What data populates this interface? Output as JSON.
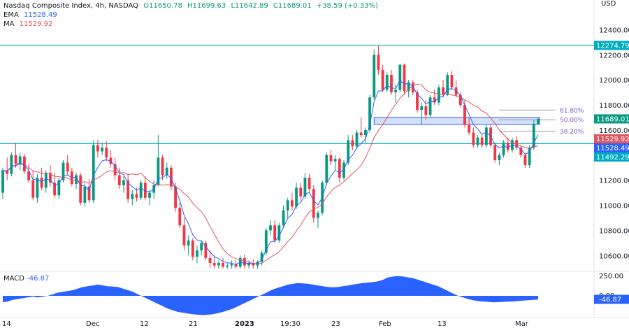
{
  "header": {
    "symbol": "Nasdaq Composite Index, 4h, NASDAQ",
    "open": "O11650.78",
    "high": "H11699.63",
    "low": "L11642.89",
    "close": "C11689.01",
    "change": "+38.59 (+0.33%)",
    "ema_label": "EMA",
    "ema_value": "11528.49",
    "ma_label": "MA",
    "ma_value": "11529.92",
    "currency": "USD"
  },
  "colors": {
    "up": "#089981",
    "down": "#f23645",
    "ema": "#2962ff",
    "ma": "#e0555f",
    "level": "#00acc1",
    "macd": "#2962ff",
    "zone": "#c5d6f5",
    "fib": "#7e57c2"
  },
  "chart_data": {
    "type": "candlestick",
    "y_axis": {
      "ticks": [
        10600,
        10800,
        11000,
        11200,
        11400,
        11600,
        11800,
        12000,
        12200,
        12400
      ],
      "tick_labels": [
        "10600.00",
        "10800.00",
        "11000.00",
        "11200.00",
        "11400.00",
        "11600.00",
        "11800.00",
        "12000.00",
        "12200.00",
        "12400.00"
      ],
      "range": [
        10490,
        12570
      ]
    },
    "x_axis": {
      "labels": [
        "14",
        "Dec",
        "12",
        "21",
        "2023",
        "19:30",
        "23",
        "Feb",
        "13",
        "Mar"
      ]
    },
    "price_labels": [
      {
        "text": "12274.79",
        "value": 12274.79,
        "color": "#00acc1"
      },
      {
        "text": "11689.01",
        "value": 11689.01,
        "color": "#089981"
      },
      {
        "text": "11529.92",
        "value": 11529.92,
        "color": "#e0555f"
      },
      {
        "text": "11528.49",
        "value": 11528.49,
        "color": "#2962ff"
      },
      {
        "text": "11492.29",
        "value": 11492.29,
        "color": "#00acc1"
      }
    ],
    "levels": [
      {
        "name": "resistance",
        "value": 12274.79
      },
      {
        "name": "support",
        "value": 11492.29
      }
    ],
    "fib_levels": [
      {
        "label": "61.80%",
        "value": 11760
      },
      {
        "label": "50.00%",
        "value": 11682
      },
      {
        "label": "38.20%",
        "value": 11590
      }
    ],
    "zone": {
      "low": 11645,
      "high": 11700
    },
    "candles": [
      {
        "o": 11100,
        "h": 11300,
        "l": 11050,
        "c": 11280
      },
      {
        "o": 11280,
        "h": 11380,
        "l": 11200,
        "c": 11250
      },
      {
        "o": 11250,
        "h": 11420,
        "l": 11230,
        "c": 11400
      },
      {
        "o": 11400,
        "h": 11500,
        "l": 11300,
        "c": 11330
      },
      {
        "o": 11330,
        "h": 11420,
        "l": 11280,
        "c": 11390
      },
      {
        "o": 11390,
        "h": 11410,
        "l": 11250,
        "c": 11270
      },
      {
        "o": 11270,
        "h": 11330,
        "l": 11180,
        "c": 11200
      },
      {
        "o": 11200,
        "h": 11280,
        "l": 11040,
        "c": 11060
      },
      {
        "o": 11060,
        "h": 11250,
        "l": 11020,
        "c": 11220
      },
      {
        "o": 11220,
        "h": 11300,
        "l": 11120,
        "c": 11140
      },
      {
        "o": 11140,
        "h": 11280,
        "l": 11100,
        "c": 11260
      },
      {
        "o": 11260,
        "h": 11320,
        "l": 11150,
        "c": 11180
      },
      {
        "o": 11180,
        "h": 11260,
        "l": 11060,
        "c": 11080
      },
      {
        "o": 11080,
        "h": 11220,
        "l": 11050,
        "c": 11200
      },
      {
        "o": 11200,
        "h": 11360,
        "l": 11180,
        "c": 11340
      },
      {
        "o": 11340,
        "h": 11400,
        "l": 11240,
        "c": 11270
      },
      {
        "o": 11270,
        "h": 11300,
        "l": 11150,
        "c": 11170
      },
      {
        "o": 11170,
        "h": 11260,
        "l": 11130,
        "c": 11240
      },
      {
        "o": 11240,
        "h": 11260,
        "l": 11000,
        "c": 11020
      },
      {
        "o": 11020,
        "h": 11180,
        "l": 10990,
        "c": 11150
      },
      {
        "o": 11150,
        "h": 11210,
        "l": 11020,
        "c": 11040
      },
      {
        "o": 11040,
        "h": 11520,
        "l": 11020,
        "c": 11480
      },
      {
        "o": 11480,
        "h": 11520,
        "l": 11380,
        "c": 11430
      },
      {
        "o": 11430,
        "h": 11500,
        "l": 11400,
        "c": 11460
      },
      {
        "o": 11460,
        "h": 11510,
        "l": 11350,
        "c": 11380
      },
      {
        "o": 11380,
        "h": 11440,
        "l": 11300,
        "c": 11330
      },
      {
        "o": 11330,
        "h": 11380,
        "l": 11200,
        "c": 11240
      },
      {
        "o": 11240,
        "h": 11300,
        "l": 11130,
        "c": 11160
      },
      {
        "o": 11160,
        "h": 11230,
        "l": 11100,
        "c": 11200
      },
      {
        "o": 11200,
        "h": 11250,
        "l": 11020,
        "c": 11050
      },
      {
        "o": 11050,
        "h": 11120,
        "l": 11000,
        "c": 11090
      },
      {
        "o": 11090,
        "h": 11140,
        "l": 11030,
        "c": 11060
      },
      {
        "o": 11060,
        "h": 11200,
        "l": 11040,
        "c": 11180
      },
      {
        "o": 11180,
        "h": 11230,
        "l": 11040,
        "c": 11060
      },
      {
        "o": 11060,
        "h": 11120,
        "l": 11000,
        "c": 11100
      },
      {
        "o": 11100,
        "h": 11200,
        "l": 11050,
        "c": 11160
      },
      {
        "o": 11160,
        "h": 11560,
        "l": 11150,
        "c": 11380
      },
      {
        "o": 11380,
        "h": 11400,
        "l": 11200,
        "c": 11240
      },
      {
        "o": 11240,
        "h": 11340,
        "l": 11210,
        "c": 11300
      },
      {
        "o": 11300,
        "h": 11320,
        "l": 11120,
        "c": 11150
      },
      {
        "o": 11150,
        "h": 11180,
        "l": 10950,
        "c": 10980
      },
      {
        "o": 10980,
        "h": 11020,
        "l": 10820,
        "c": 10840
      },
      {
        "o": 10840,
        "h": 10900,
        "l": 10640,
        "c": 10680
      },
      {
        "o": 10680,
        "h": 10760,
        "l": 10600,
        "c": 10720
      },
      {
        "o": 10720,
        "h": 10740,
        "l": 10560,
        "c": 10590
      },
      {
        "o": 10590,
        "h": 10680,
        "l": 10540,
        "c": 10640
      },
      {
        "o": 10640,
        "h": 10720,
        "l": 10600,
        "c": 10700
      },
      {
        "o": 10700,
        "h": 10720,
        "l": 10560,
        "c": 10580
      },
      {
        "o": 10580,
        "h": 10640,
        "l": 10500,
        "c": 10540
      },
      {
        "o": 10540,
        "h": 10600,
        "l": 10495,
        "c": 10520
      },
      {
        "o": 10520,
        "h": 10560,
        "l": 10495,
        "c": 10540
      },
      {
        "o": 10540,
        "h": 10580,
        "l": 10495,
        "c": 10510
      },
      {
        "o": 10510,
        "h": 10540,
        "l": 10495,
        "c": 10520
      },
      {
        "o": 10520,
        "h": 10560,
        "l": 10495,
        "c": 10530
      },
      {
        "o": 10530,
        "h": 10560,
        "l": 10495,
        "c": 10510
      },
      {
        "o": 10510,
        "h": 10600,
        "l": 10495,
        "c": 10580
      },
      {
        "o": 10580,
        "h": 10610,
        "l": 10495,
        "c": 10520
      },
      {
        "o": 10520,
        "h": 10560,
        "l": 10495,
        "c": 10540
      },
      {
        "o": 10540,
        "h": 10570,
        "l": 10495,
        "c": 10520
      },
      {
        "o": 10520,
        "h": 10560,
        "l": 10495,
        "c": 10550
      },
      {
        "o": 10550,
        "h": 10640,
        "l": 10520,
        "c": 10620
      },
      {
        "o": 10620,
        "h": 10820,
        "l": 10600,
        "c": 10800
      },
      {
        "o": 10800,
        "h": 10880,
        "l": 10760,
        "c": 10840
      },
      {
        "o": 10840,
        "h": 10880,
        "l": 10700,
        "c": 10720
      },
      {
        "o": 10720,
        "h": 10860,
        "l": 10700,
        "c": 10840
      },
      {
        "o": 10840,
        "h": 11000,
        "l": 10820,
        "c": 10960
      },
      {
        "o": 10960,
        "h": 11060,
        "l": 10900,
        "c": 11040
      },
      {
        "o": 11040,
        "h": 11100,
        "l": 10960,
        "c": 10990
      },
      {
        "o": 10990,
        "h": 11180,
        "l": 10970,
        "c": 11140
      },
      {
        "o": 11140,
        "h": 11180,
        "l": 11040,
        "c": 11070
      },
      {
        "o": 11070,
        "h": 11260,
        "l": 11050,
        "c": 11220
      },
      {
        "o": 11220,
        "h": 11250,
        "l": 11100,
        "c": 11130
      },
      {
        "o": 11130,
        "h": 11160,
        "l": 10860,
        "c": 10900
      },
      {
        "o": 10900,
        "h": 10960,
        "l": 10820,
        "c": 10940
      },
      {
        "o": 10940,
        "h": 11200,
        "l": 10920,
        "c": 11180
      },
      {
        "o": 11180,
        "h": 11420,
        "l": 11160,
        "c": 11400
      },
      {
        "o": 11400,
        "h": 11440,
        "l": 11320,
        "c": 11350
      },
      {
        "o": 11350,
        "h": 11400,
        "l": 11280,
        "c": 11370
      },
      {
        "o": 11370,
        "h": 11380,
        "l": 11180,
        "c": 11220
      },
      {
        "o": 11220,
        "h": 11360,
        "l": 11200,
        "c": 11340
      },
      {
        "o": 11340,
        "h": 11560,
        "l": 11320,
        "c": 11520
      },
      {
        "o": 11520,
        "h": 11560,
        "l": 11440,
        "c": 11470
      },
      {
        "o": 11470,
        "h": 11600,
        "l": 11450,
        "c": 11580
      },
      {
        "o": 11580,
        "h": 11700,
        "l": 11540,
        "c": 11560
      },
      {
        "o": 11560,
        "h": 11620,
        "l": 11500,
        "c": 11600
      },
      {
        "o": 11600,
        "h": 11880,
        "l": 11580,
        "c": 11860
      },
      {
        "o": 11860,
        "h": 12240,
        "l": 11840,
        "c": 12200
      },
      {
        "o": 12200,
        "h": 12275,
        "l": 12040,
        "c": 12080
      },
      {
        "o": 12080,
        "h": 12120,
        "l": 11900,
        "c": 11920
      },
      {
        "o": 11920,
        "h": 12060,
        "l": 11900,
        "c": 12040
      },
      {
        "o": 12040,
        "h": 12080,
        "l": 11880,
        "c": 11900
      },
      {
        "o": 11900,
        "h": 11960,
        "l": 11820,
        "c": 11920
      },
      {
        "o": 11920,
        "h": 12130,
        "l": 11900,
        "c": 12120
      },
      {
        "o": 12120,
        "h": 12130,
        "l": 11880,
        "c": 11910
      },
      {
        "o": 11910,
        "h": 12000,
        "l": 11860,
        "c": 11980
      },
      {
        "o": 11980,
        "h": 12000,
        "l": 11880,
        "c": 11900
      },
      {
        "o": 11900,
        "h": 11920,
        "l": 11740,
        "c": 11760
      },
      {
        "o": 11760,
        "h": 11820,
        "l": 11640,
        "c": 11790
      },
      {
        "o": 11790,
        "h": 11840,
        "l": 11680,
        "c": 11720
      },
      {
        "o": 11720,
        "h": 11880,
        "l": 11700,
        "c": 11860
      },
      {
        "o": 11860,
        "h": 11920,
        "l": 11800,
        "c": 11820
      },
      {
        "o": 11820,
        "h": 11960,
        "l": 11800,
        "c": 11940
      },
      {
        "o": 11940,
        "h": 12000,
        "l": 11860,
        "c": 11880
      },
      {
        "o": 11880,
        "h": 12060,
        "l": 11870,
        "c": 12040
      },
      {
        "o": 12040,
        "h": 12070,
        "l": 11920,
        "c": 11940
      },
      {
        "o": 11940,
        "h": 12000,
        "l": 11860,
        "c": 11880
      },
      {
        "o": 11880,
        "h": 11900,
        "l": 11780,
        "c": 11800
      },
      {
        "o": 11800,
        "h": 11840,
        "l": 11620,
        "c": 11640
      },
      {
        "o": 11640,
        "h": 11700,
        "l": 11560,
        "c": 11580
      },
      {
        "o": 11580,
        "h": 11620,
        "l": 11460,
        "c": 11480
      },
      {
        "o": 11480,
        "h": 11560,
        "l": 11460,
        "c": 11540
      },
      {
        "o": 11540,
        "h": 11570,
        "l": 11460,
        "c": 11480
      },
      {
        "o": 11480,
        "h": 11640,
        "l": 11460,
        "c": 11620
      },
      {
        "o": 11620,
        "h": 11640,
        "l": 11460,
        "c": 11480
      },
      {
        "o": 11480,
        "h": 11500,
        "l": 11340,
        "c": 11360
      },
      {
        "o": 11360,
        "h": 11420,
        "l": 11320,
        "c": 11400
      },
      {
        "o": 11400,
        "h": 11520,
        "l": 11380,
        "c": 11500
      },
      {
        "o": 11500,
        "h": 11540,
        "l": 11420,
        "c": 11440
      },
      {
        "o": 11440,
        "h": 11540,
        "l": 11420,
        "c": 11520
      },
      {
        "o": 11520,
        "h": 11550,
        "l": 11440,
        "c": 11460
      },
      {
        "o": 11460,
        "h": 11480,
        "l": 11380,
        "c": 11400
      },
      {
        "o": 11400,
        "h": 11420,
        "l": 11300,
        "c": 11320
      },
      {
        "o": 11320,
        "h": 11480,
        "l": 11300,
        "c": 11460
      },
      {
        "o": 11460,
        "h": 11680,
        "l": 11440,
        "c": 11650
      },
      {
        "o": 11650,
        "h": 11700,
        "l": 11642,
        "c": 11689
      }
    ],
    "macd": {
      "label": "MACD",
      "value_text": "-46.87",
      "scale_labels": [
        "250.00",
        "0.00"
      ],
      "values": [
        -80,
        -70,
        -50,
        -40,
        -30,
        -20,
        -10,
        -20,
        -10,
        0,
        20,
        40,
        50,
        60,
        70,
        90,
        110,
        120,
        130,
        140,
        130,
        120,
        115,
        110,
        90,
        70,
        50,
        20,
        -10,
        -40,
        -70,
        -100,
        -130,
        -160,
        -180,
        -200,
        -210,
        -220,
        -230,
        -235,
        -240,
        -235,
        -230,
        -215,
        -200,
        -180,
        -160,
        -130,
        -100,
        -70,
        -40,
        -10,
        20,
        50,
        80,
        100,
        120,
        140,
        150,
        160,
        155,
        150,
        140,
        130,
        120,
        110,
        105,
        110,
        120,
        130,
        140,
        150,
        160,
        165,
        170,
        180,
        200,
        230,
        240,
        245,
        240,
        230,
        220,
        200,
        180,
        160,
        140,
        120,
        90,
        60,
        30,
        0,
        -20,
        -40,
        -55,
        -65,
        -70,
        -75,
        -80,
        -78,
        -75,
        -72,
        -70,
        -65,
        -60,
        -55,
        -50,
        -46.87
      ]
    }
  }
}
